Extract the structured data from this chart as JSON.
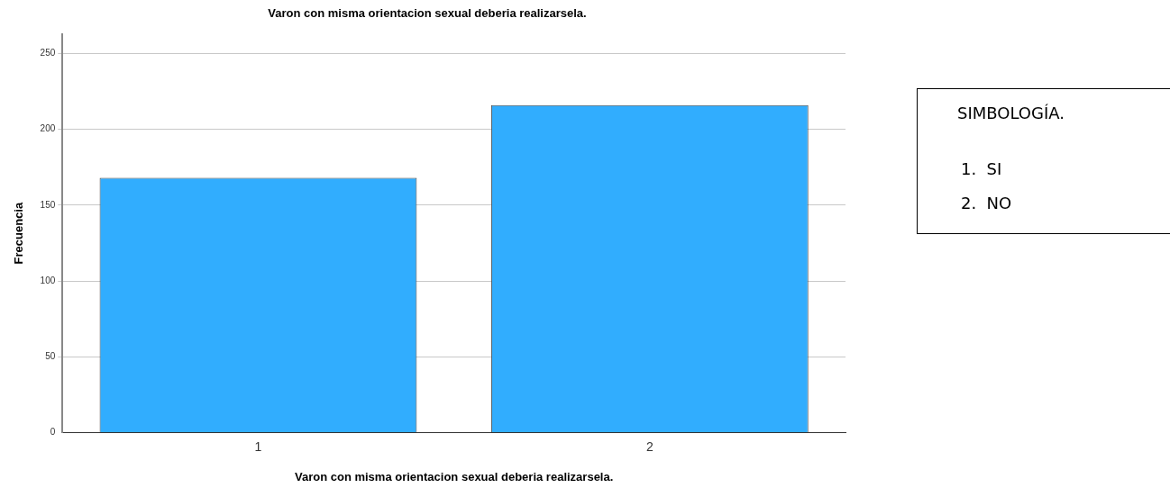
{
  "chart_data": {
    "type": "bar",
    "title": "Varon con misma orientacion sexual deberia realizarsela.",
    "xlabel": "Varon con misma orientacion sexual deberia realizarsela.",
    "ylabel": "Frecuencia",
    "categories": [
      "1",
      "2"
    ],
    "values": [
      168,
      216
    ],
    "color": "#31adfe",
    "ylim": [
      0,
      263
    ],
    "yticks": [
      0,
      50,
      100,
      150,
      200,
      250
    ],
    "grid": "y",
    "legend": false,
    "annotations": [
      "SIMBOLOGÍA.",
      "1.  SI",
      "2.  NO"
    ]
  }
}
